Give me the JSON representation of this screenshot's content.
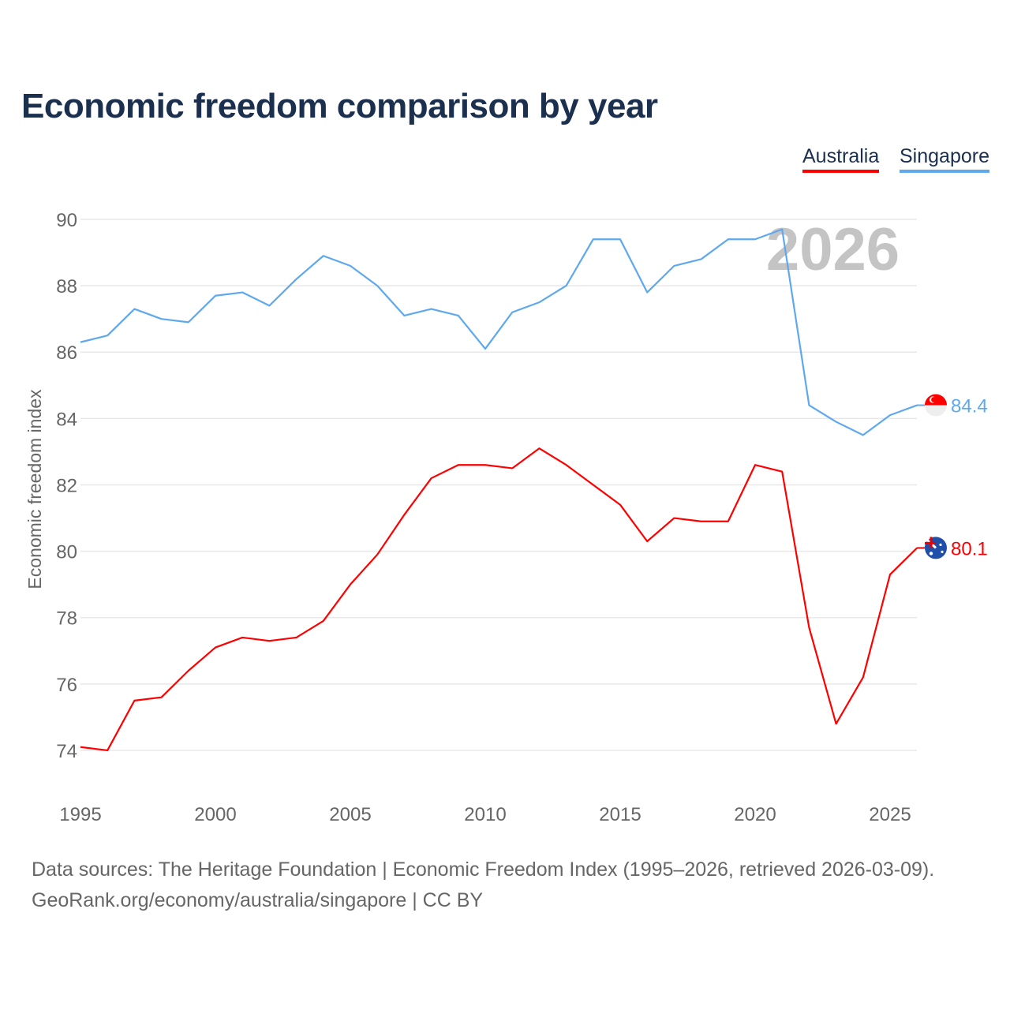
{
  "chart_data": {
    "type": "line",
    "title": "Economic freedom comparison by year",
    "xlabel": "",
    "ylabel": "Economic freedom index",
    "ylim": [
      73,
      90.5
    ],
    "xlim": [
      1995,
      2026
    ],
    "yticks": [
      74,
      76,
      78,
      80,
      82,
      84,
      86,
      88,
      90
    ],
    "xticks": [
      1995,
      2000,
      2005,
      2010,
      2015,
      2020,
      2025
    ],
    "grid": true,
    "legend_placement": "top-right",
    "year_watermark": "2026",
    "x": [
      1995,
      1996,
      1997,
      1998,
      1999,
      2000,
      2001,
      2002,
      2003,
      2004,
      2005,
      2006,
      2007,
      2008,
      2009,
      2010,
      2011,
      2012,
      2013,
      2014,
      2015,
      2016,
      2017,
      2018,
      2019,
      2020,
      2021,
      2022,
      2023,
      2024,
      2025,
      2026
    ],
    "series": [
      {
        "name": "Australia",
        "color": "#ff0000",
        "end_label": "80.1",
        "values": [
          74.1,
          74.0,
          75.5,
          75.6,
          76.4,
          77.1,
          77.4,
          77.3,
          77.4,
          77.9,
          79.0,
          79.9,
          81.1,
          82.2,
          82.6,
          82.6,
          82.5,
          83.1,
          82.6,
          82.0,
          81.4,
          80.3,
          81.0,
          80.9,
          80.9,
          82.6,
          82.4,
          77.7,
          74.8,
          76.2,
          79.3,
          80.1
        ]
      },
      {
        "name": "Singapore",
        "color": "#5ea8ee",
        "end_label": "84.4",
        "values": [
          86.3,
          86.5,
          87.3,
          87.0,
          86.9,
          87.7,
          87.8,
          87.4,
          88.2,
          88.9,
          88.6,
          88.0,
          87.1,
          87.3,
          87.1,
          86.1,
          87.2,
          87.5,
          88.0,
          89.4,
          89.4,
          87.8,
          88.6,
          88.8,
          89.4,
          89.4,
          89.7,
          84.4,
          83.9,
          83.5,
          84.1,
          84.4
        ]
      }
    ]
  },
  "footer": {
    "line1": "Data sources: The Heritage Foundation | Economic Freedom Index (1995–2026, retrieved 2026-03-09).",
    "line2": "GeoRank.org/economy/australia/singapore | CC BY"
  }
}
